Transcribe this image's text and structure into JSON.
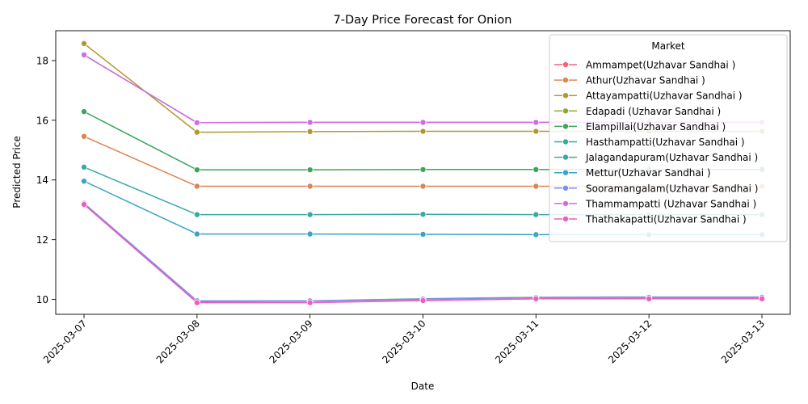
{
  "chart_data": {
    "type": "line",
    "title": "7-Day Price Forecast for Onion",
    "xlabel": "Date",
    "ylabel": "Predicted Price",
    "x": [
      "2025-03-07",
      "2025-03-08",
      "2025-03-09",
      "2025-03-10",
      "2025-03-11",
      "2025-03-12",
      "2025-03-13"
    ],
    "yticks": [
      10,
      12,
      14,
      16,
      18
    ],
    "ylim": [
      9.5,
      19.0
    ],
    "grid": false,
    "legend": {
      "title": "Market",
      "placement": "upper right"
    },
    "series": [
      {
        "name": "Ammampet(Uzhavar Sandhai )",
        "color": "#f2637a",
        "values": [
          13.18,
          9.9,
          9.9,
          9.97,
          10.02,
          10.03,
          10.03
        ]
      },
      {
        "name": "Athur(Uzhavar Sandhai )",
        "color": "#dd8452",
        "values": [
          15.46,
          13.79,
          13.79,
          13.79,
          13.79,
          13.79,
          13.79
        ]
      },
      {
        "name": "Attayampatti(Uzhavar Sandhai )",
        "color": "#b5962e",
        "values": [
          18.57,
          15.6,
          15.62,
          15.63,
          15.63,
          15.63,
          15.63
        ]
      },
      {
        "name": "Edapadi (Uzhavar Sandhai )",
        "color": "#8fa832",
        "values": [
          18.19,
          15.92,
          15.93,
          15.93,
          15.93,
          15.93,
          15.93
        ]
      },
      {
        "name": "Elampillai(Uzhavar Sandhai )",
        "color": "#3aa757",
        "values": [
          16.29,
          14.34,
          14.34,
          14.35,
          14.35,
          14.35,
          14.35
        ]
      },
      {
        "name": "Hasthampatti(Uzhavar Sandhai )",
        "color": "#36ab8e",
        "values": [
          13.2,
          9.94,
          9.95,
          10.02,
          10.07,
          10.08,
          10.08
        ]
      },
      {
        "name": "Jalagandapuram(Uzhavar Sandhai )",
        "color": "#38a9a6",
        "values": [
          14.43,
          12.84,
          12.84,
          12.85,
          12.84,
          12.84,
          12.84
        ]
      },
      {
        "name": "Mettur(Uzhavar Sandhai )",
        "color": "#3ba3c9",
        "values": [
          13.96,
          12.19,
          12.19,
          12.18,
          12.17,
          12.17,
          12.17
        ]
      },
      {
        "name": "Sooramangalam(Uzhavar Sandhai )",
        "color": "#7c8ef0",
        "values": [
          13.22,
          9.95,
          9.95,
          10.01,
          10.06,
          10.07,
          10.07
        ]
      },
      {
        "name": "Thammampatti (Uzhavar Sandhai )",
        "color": "#d06be8",
        "values": [
          18.19,
          15.92,
          15.93,
          15.93,
          15.93,
          15.93,
          15.93
        ]
      },
      {
        "name": "Thathakapatti(Uzhavar Sandhai )",
        "color": "#ec5fbe",
        "values": [
          13.18,
          9.89,
          9.89,
          9.96,
          10.02,
          10.02,
          10.02
        ]
      }
    ]
  }
}
